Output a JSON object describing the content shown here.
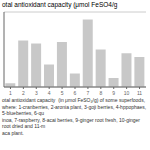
{
  "chart_data": {
    "type": "bar",
    "title": "otal antioxidant capacity (μmol FeSO4/g",
    "categories": [
      "1",
      "2",
      "3",
      "4",
      "5",
      "6",
      "7",
      "8",
      "9",
      "10",
      "11"
    ],
    "values": [
      5,
      62,
      58,
      30,
      60,
      18,
      90,
      50,
      12,
      45,
      40
    ],
    "color": "#c8c8c8",
    "ylim": [
      0,
      100
    ],
    "yticks": [
      0,
      20,
      40,
      60,
      80,
      100
    ],
    "grid": true,
    "tick_labels": "x",
    "annotations": [
      "otal antioxidant capacity  (in μmol FeSO₄/g) of some superfoods, where: 1-cranberries, 2-aronia plant, 3-goji berries, 4-hppophaes, 5-blueberries, 6-qu\ninoa, 7-raspberry, 8-acai berries, 9-ginger root fresh, 10-ginger root dried and 11-m\naca plant."
    ]
  }
}
